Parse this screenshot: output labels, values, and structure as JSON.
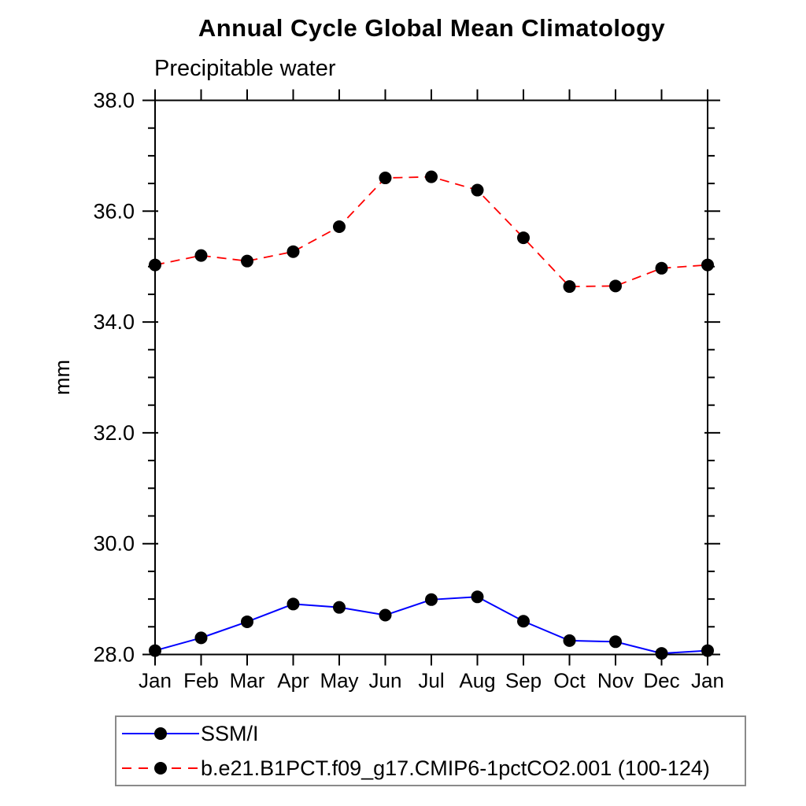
{
  "page": {
    "background": "#ffffff"
  },
  "chart_data": {
    "type": "line",
    "title": "Annual Cycle Global Mean Climatology",
    "subtitle": "Precipitable water",
    "xlabel": "",
    "ylabel": "mm",
    "ylim": [
      28.0,
      38.0
    ],
    "ytick_major_step": 2.0,
    "ytick_minor_step": 0.5,
    "ytick_labels": [
      "28.0",
      "30.0",
      "32.0",
      "34.0",
      "36.0",
      "38.0"
    ],
    "categories": [
      "Jan",
      "Feb",
      "Mar",
      "Apr",
      "May",
      "Jun",
      "Jul",
      "Aug",
      "Sep",
      "Oct",
      "Nov",
      "Dec",
      "Jan"
    ],
    "grid": false,
    "legend_position": "bottom-left-box",
    "marker": "black-dot",
    "marker_color": "#000000",
    "axis_color": "#000000",
    "series": [
      {
        "name": "SSM/I",
        "color": "#0000ff",
        "style": "solid",
        "values": [
          28.07,
          28.3,
          28.59,
          28.91,
          28.85,
          28.71,
          28.99,
          29.04,
          28.6,
          28.25,
          28.23,
          28.02,
          28.07
        ]
      },
      {
        "name": "b.e21.B1PCT.f09_g17.CMIP6-1pctCO2.001 (100-124)",
        "color": "#ff0000",
        "style": "dashed",
        "values": [
          35.03,
          35.2,
          35.1,
          35.27,
          35.72,
          36.6,
          36.62,
          36.38,
          35.52,
          34.64,
          34.65,
          34.97,
          35.03
        ]
      }
    ]
  }
}
